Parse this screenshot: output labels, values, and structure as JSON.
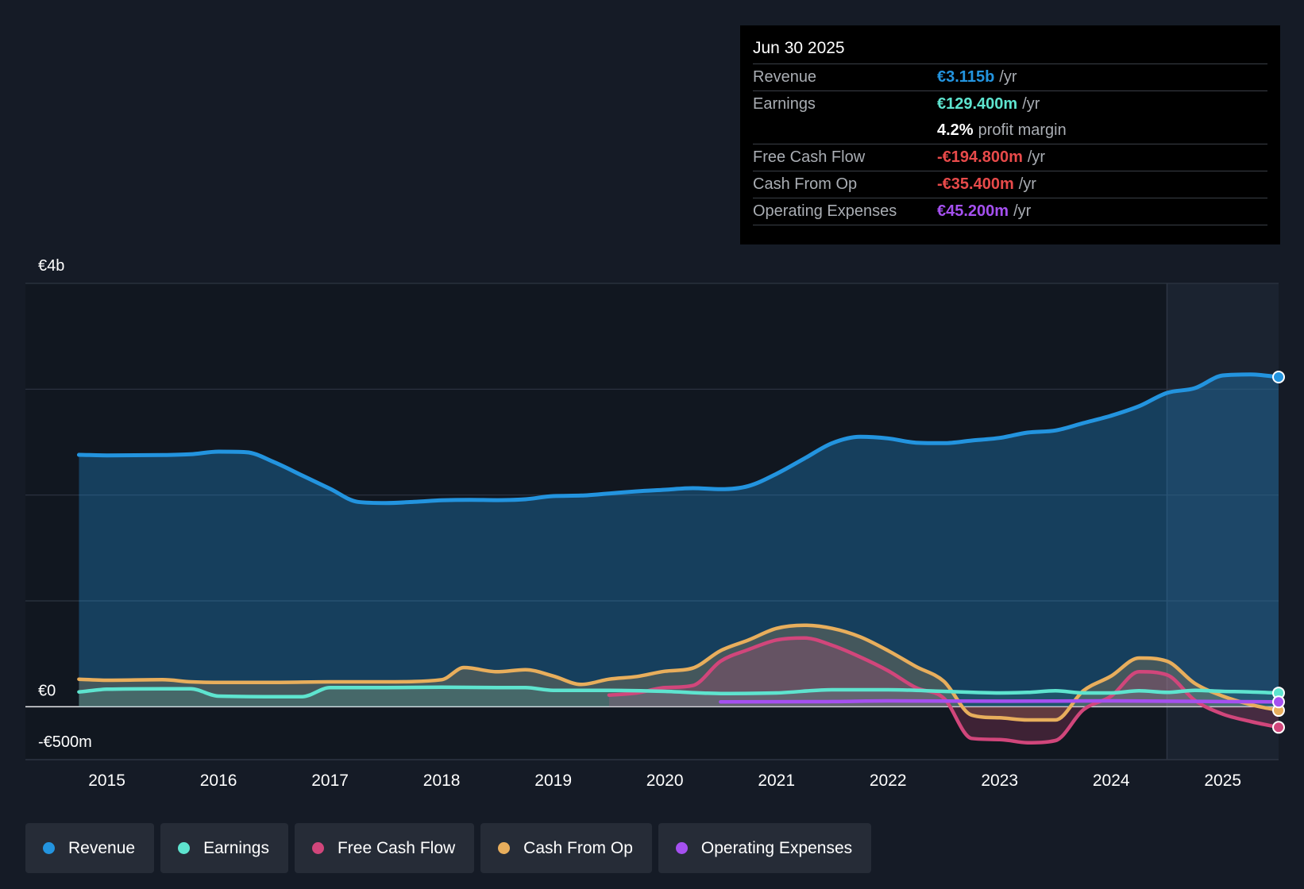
{
  "colors": {
    "revenue": "#2394df",
    "earnings": "#5ee4cf",
    "fcf": "#d1467b",
    "cfo": "#e8ae5c",
    "opex": "#a550f0",
    "negative": "#e84a4a",
    "label": "#a9adb3"
  },
  "tooltip": {
    "date": "Jun 30 2025",
    "rows": [
      {
        "label": "Revenue",
        "value": "€3.115b",
        "unit": "/yr",
        "color_key": "revenue"
      },
      {
        "label": "Earnings",
        "value": "€129.400m",
        "unit": "/yr",
        "color_key": "earnings"
      },
      {
        "label": "",
        "value": "4.2%",
        "unit": "profit margin",
        "color_key": "white"
      },
      {
        "label": "Free Cash Flow",
        "value": "-€194.800m",
        "unit": "/yr",
        "color_key": "negative"
      },
      {
        "label": "Cash From Op",
        "value": "-€35.400m",
        "unit": "/yr",
        "color_key": "negative"
      },
      {
        "label": "Operating Expenses",
        "value": "€45.200m",
        "unit": "/yr",
        "color_key": "opex"
      }
    ]
  },
  "legend": [
    {
      "label": "Revenue",
      "color_key": "revenue"
    },
    {
      "label": "Earnings",
      "color_key": "earnings"
    },
    {
      "label": "Free Cash Flow",
      "color_key": "fcf"
    },
    {
      "label": "Cash From Op",
      "color_key": "cfo"
    },
    {
      "label": "Operating Expenses",
      "color_key": "opex"
    }
  ],
  "chart_data": {
    "type": "area",
    "unit": "€m",
    "ylim": [
      -500,
      4000
    ],
    "y_tick_labels": [
      {
        "value": 4000,
        "label": "€4b"
      },
      {
        "value": 0,
        "label": "€0"
      },
      {
        "value": -500,
        "label": "-€500m"
      }
    ],
    "y_gridlines": [
      4000,
      3000,
      2000,
      1000,
      0
    ],
    "xlim": [
      2014.27,
      2025.5
    ],
    "x_ticks": [
      2015,
      2016,
      2017,
      2018,
      2019,
      2020,
      2021,
      2022,
      2023,
      2024,
      2025
    ],
    "highlight_start": 2024.5,
    "series": [
      {
        "name": "Revenue",
        "key": "revenue",
        "points": [
          [
            2014.75,
            2380
          ],
          [
            2015.0,
            2375
          ],
          [
            2015.5,
            2378
          ],
          [
            2015.75,
            2385
          ],
          [
            2016.0,
            2410
          ],
          [
            2016.25,
            2405
          ],
          [
            2016.5,
            2310
          ],
          [
            2016.75,
            2185
          ],
          [
            2017.0,
            2060
          ],
          [
            2017.25,
            1935
          ],
          [
            2017.5,
            1925
          ],
          [
            2017.75,
            1935
          ],
          [
            2018.0,
            1950
          ],
          [
            2018.25,
            1955
          ],
          [
            2018.5,
            1952
          ],
          [
            2018.75,
            1960
          ],
          [
            2019.0,
            1990
          ],
          [
            2019.25,
            1995
          ],
          [
            2019.5,
            2015
          ],
          [
            2019.75,
            2035
          ],
          [
            2020.0,
            2050
          ],
          [
            2020.25,
            2065
          ],
          [
            2020.5,
            2055
          ],
          [
            2020.75,
            2085
          ],
          [
            2021.0,
            2200
          ],
          [
            2021.25,
            2345
          ],
          [
            2021.5,
            2490
          ],
          [
            2021.75,
            2550
          ],
          [
            2022.0,
            2535
          ],
          [
            2022.25,
            2495
          ],
          [
            2022.5,
            2490
          ],
          [
            2022.75,
            2515
          ],
          [
            2023.0,
            2540
          ],
          [
            2023.25,
            2590
          ],
          [
            2023.5,
            2610
          ],
          [
            2023.75,
            2680
          ],
          [
            2024.0,
            2750
          ],
          [
            2024.25,
            2840
          ],
          [
            2024.5,
            2965
          ],
          [
            2024.75,
            3010
          ],
          [
            2025.0,
            3130
          ],
          [
            2025.25,
            3140
          ],
          [
            2025.5,
            3115
          ]
        ]
      },
      {
        "name": "Cash From Op",
        "key": "cfo",
        "points": [
          [
            2014.75,
            260
          ],
          [
            2015.0,
            250
          ],
          [
            2015.5,
            255
          ],
          [
            2015.75,
            235
          ],
          [
            2016.0,
            230
          ],
          [
            2016.5,
            230
          ],
          [
            2017.0,
            235
          ],
          [
            2017.5,
            235
          ],
          [
            2018.0,
            255
          ],
          [
            2018.2,
            370
          ],
          [
            2018.5,
            330
          ],
          [
            2018.75,
            350
          ],
          [
            2019.0,
            290
          ],
          [
            2019.25,
            210
          ],
          [
            2019.5,
            260
          ],
          [
            2019.75,
            285
          ],
          [
            2020.0,
            335
          ],
          [
            2020.25,
            365
          ],
          [
            2020.5,
            530
          ],
          [
            2020.75,
            630
          ],
          [
            2021.0,
            740
          ],
          [
            2021.25,
            770
          ],
          [
            2021.5,
            740
          ],
          [
            2021.75,
            660
          ],
          [
            2022.0,
            530
          ],
          [
            2022.25,
            380
          ],
          [
            2022.5,
            240
          ],
          [
            2022.75,
            -80
          ],
          [
            2023.0,
            -105
          ],
          [
            2023.25,
            -125
          ],
          [
            2023.5,
            -125
          ],
          [
            2023.75,
            150
          ],
          [
            2024.0,
            290
          ],
          [
            2024.25,
            460
          ],
          [
            2024.5,
            430
          ],
          [
            2024.75,
            220
          ],
          [
            2025.0,
            100
          ],
          [
            2025.25,
            20
          ],
          [
            2025.5,
            -35.4
          ]
        ]
      },
      {
        "name": "Free Cash Flow",
        "key": "fcf",
        "points": [
          [
            2019.5,
            110
          ],
          [
            2019.75,
            130
          ],
          [
            2020.0,
            180
          ],
          [
            2020.25,
            200
          ],
          [
            2020.5,
            430
          ],
          [
            2020.75,
            540
          ],
          [
            2021.0,
            630
          ],
          [
            2021.25,
            650
          ],
          [
            2021.5,
            580
          ],
          [
            2021.75,
            470
          ],
          [
            2022.0,
            340
          ],
          [
            2022.25,
            180
          ],
          [
            2022.5,
            80
          ],
          [
            2022.75,
            -300
          ],
          [
            2023.0,
            -310
          ],
          [
            2023.25,
            -340
          ],
          [
            2023.5,
            -320
          ],
          [
            2023.75,
            -30
          ],
          [
            2024.0,
            100
          ],
          [
            2024.25,
            330
          ],
          [
            2024.5,
            300
          ],
          [
            2024.75,
            60
          ],
          [
            2025.0,
            -70
          ],
          [
            2025.25,
            -140
          ],
          [
            2025.5,
            -194.8
          ]
        ]
      },
      {
        "name": "Earnings",
        "key": "earnings",
        "points": [
          [
            2014.75,
            140
          ],
          [
            2015.0,
            165
          ],
          [
            2015.5,
            170
          ],
          [
            2015.75,
            170
          ],
          [
            2016.0,
            100
          ],
          [
            2016.5,
            95
          ],
          [
            2016.75,
            95
          ],
          [
            2017.0,
            180
          ],
          [
            2017.5,
            180
          ],
          [
            2018.0,
            185
          ],
          [
            2018.5,
            180
          ],
          [
            2018.75,
            180
          ],
          [
            2019.0,
            155
          ],
          [
            2019.5,
            155
          ],
          [
            2020.0,
            145
          ],
          [
            2020.5,
            125
          ],
          [
            2021.0,
            130
          ],
          [
            2021.5,
            160
          ],
          [
            2022.0,
            160
          ],
          [
            2022.5,
            145
          ],
          [
            2023.0,
            130
          ],
          [
            2023.25,
            135
          ],
          [
            2023.5,
            150
          ],
          [
            2023.75,
            130
          ],
          [
            2024.0,
            130
          ],
          [
            2024.25,
            150
          ],
          [
            2024.5,
            135
          ],
          [
            2024.75,
            155
          ],
          [
            2025.0,
            145
          ],
          [
            2025.25,
            140
          ],
          [
            2025.5,
            129.4
          ]
        ]
      },
      {
        "name": "Operating Expenses",
        "key": "opex",
        "points": [
          [
            2020.5,
            45
          ],
          [
            2021.5,
            48
          ],
          [
            2022.0,
            55
          ],
          [
            2023.0,
            52
          ],
          [
            2024.0,
            55
          ],
          [
            2025.0,
            48
          ],
          [
            2025.5,
            45.2
          ]
        ]
      }
    ]
  }
}
